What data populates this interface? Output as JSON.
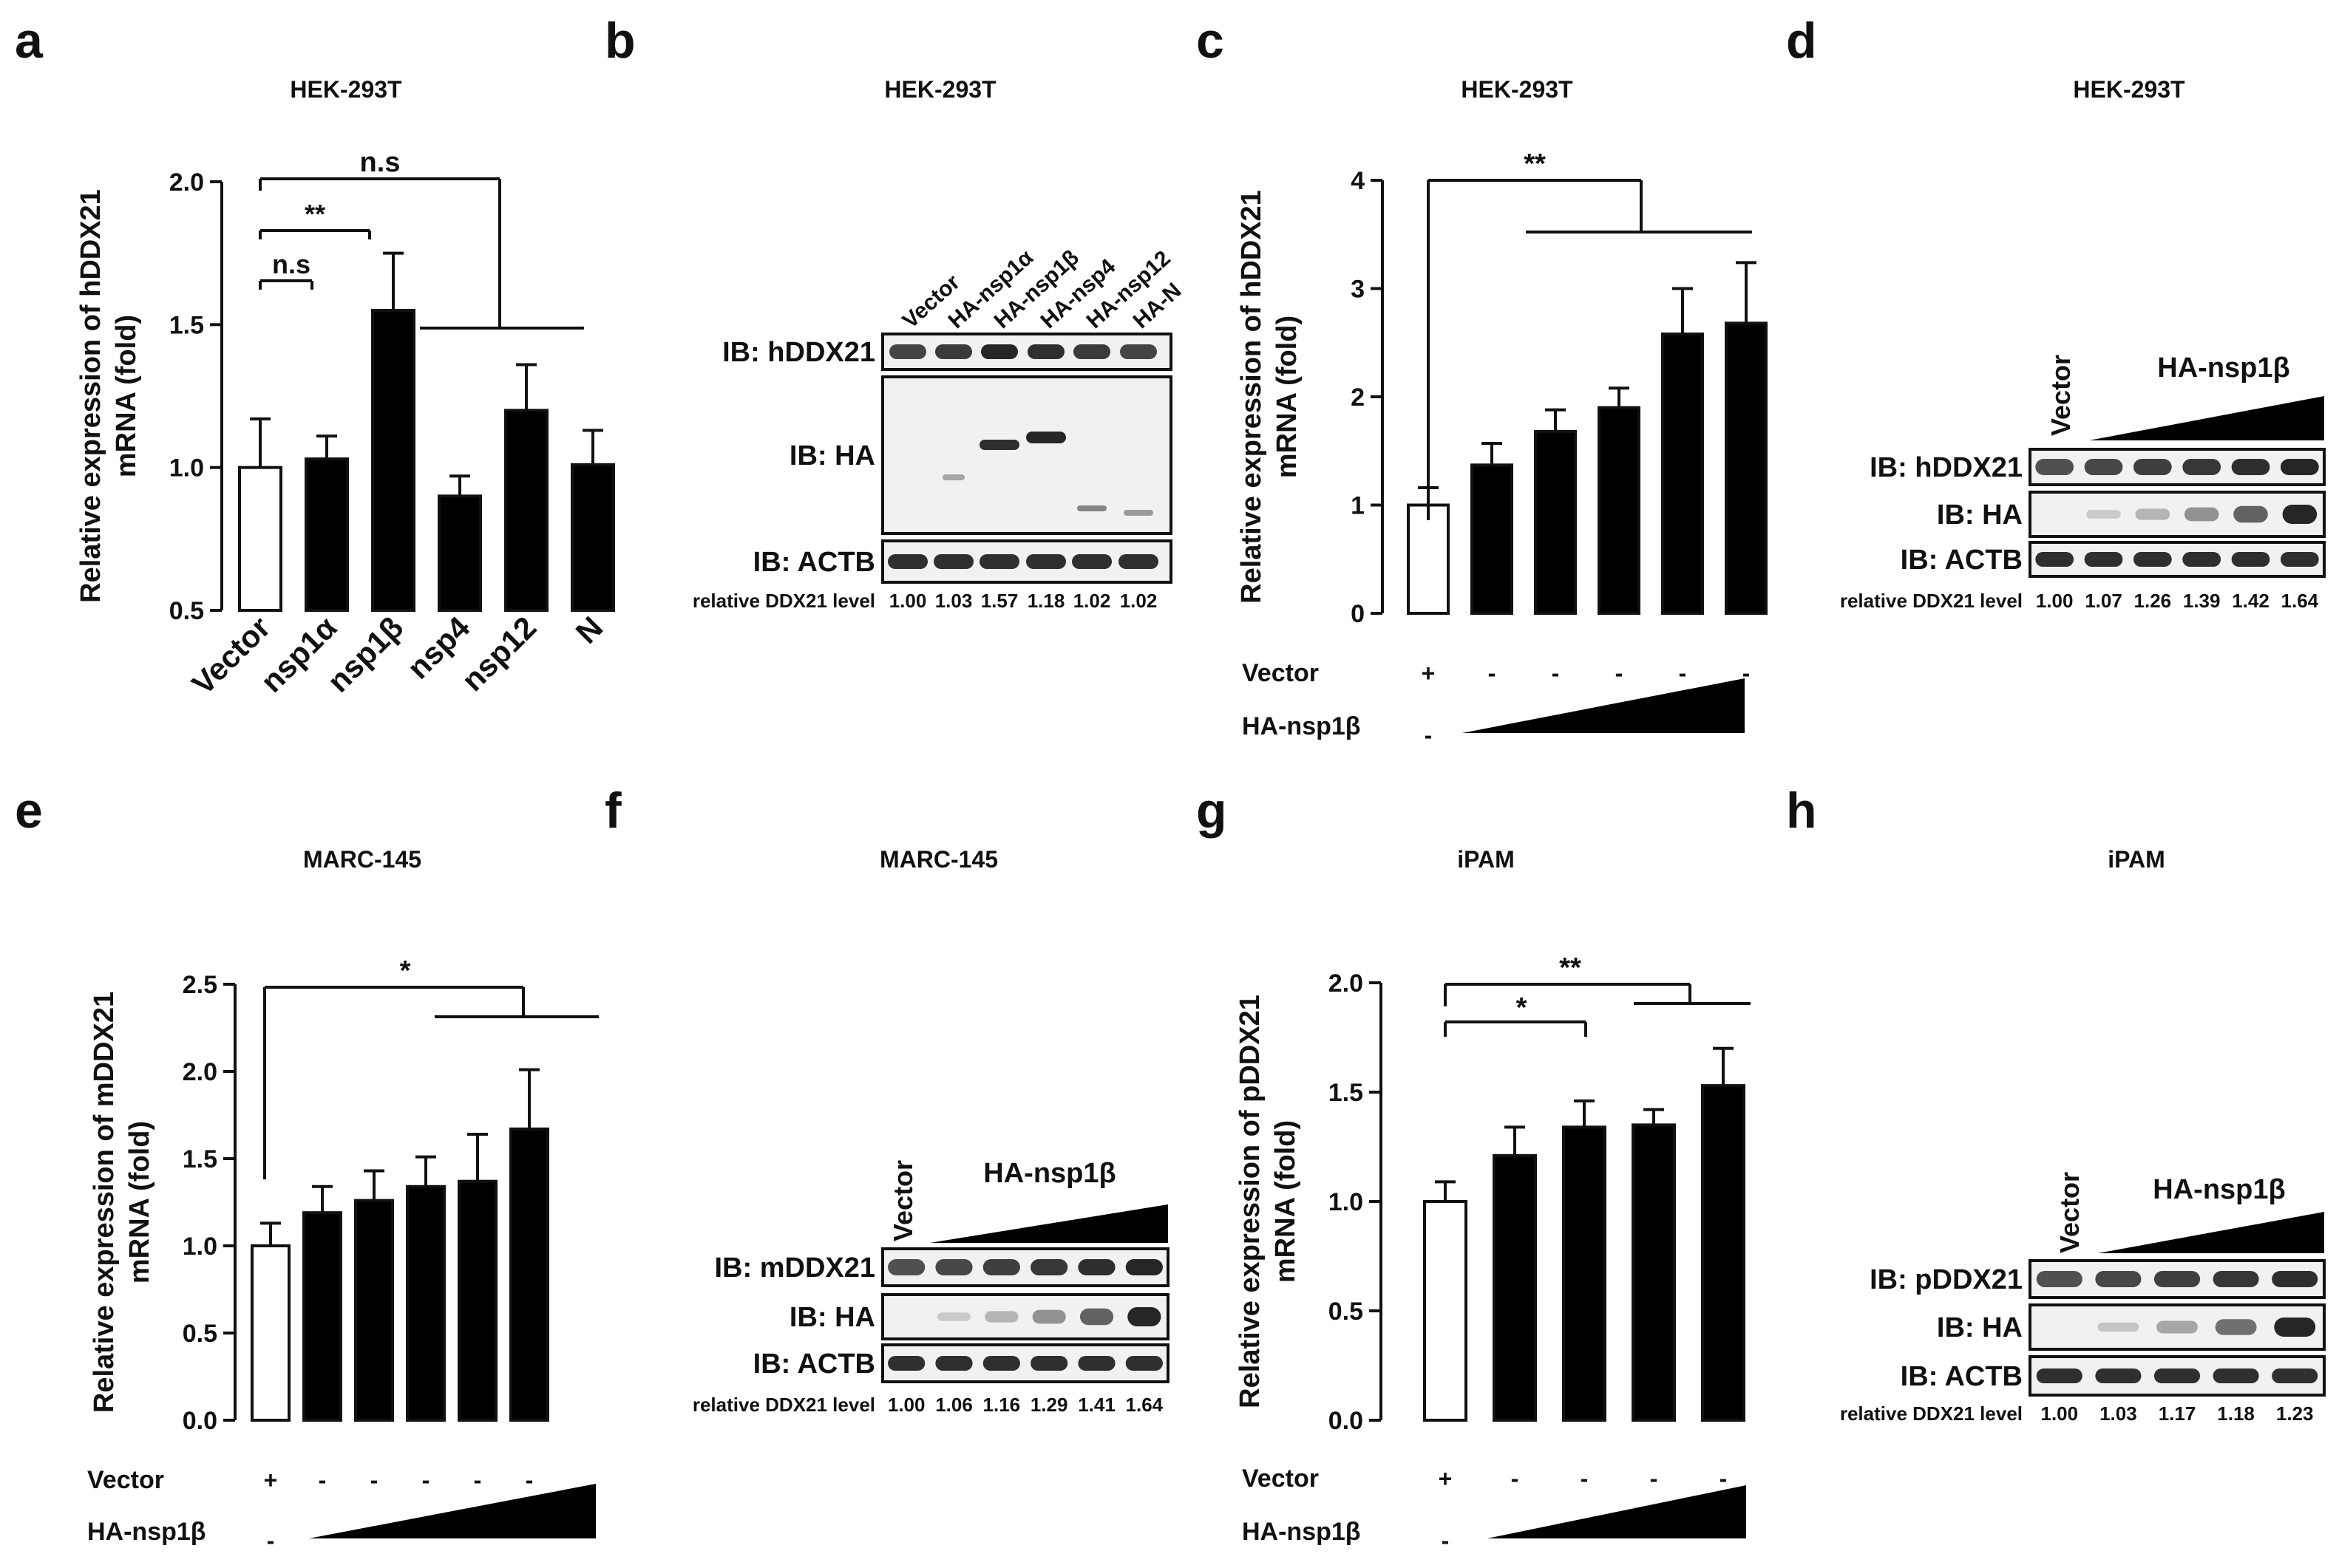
{
  "colors": {
    "ink": "#111111",
    "bar": "#000000",
    "blot_bg": "#f1f1f1",
    "band": "#1a1a1a"
  },
  "panels": {
    "a": {
      "letter": "a",
      "title": "HEK-293T"
    },
    "b": {
      "letter": "b",
      "title": "HEK-293T"
    },
    "c": {
      "letter": "c",
      "title": "HEK-293T"
    },
    "d": {
      "letter": "d",
      "title": "HEK-293T"
    },
    "e": {
      "letter": "e",
      "title": "MARC-145"
    },
    "f": {
      "letter": "f",
      "title": "MARC-145"
    },
    "g": {
      "letter": "g",
      "title": "iPAM"
    },
    "h": {
      "letter": "h",
      "title": "iPAM"
    }
  },
  "chart_data": [
    {
      "id": "a",
      "type": "bar",
      "title": "HEK-293T",
      "ylabel": [
        "Relative expression of hDDX21",
        "mRNA (fold)"
      ],
      "ylim": [
        0.5,
        2.0
      ],
      "yticks": [
        "0.5",
        "1.0",
        "1.5",
        "2.0"
      ],
      "yticks_values": [
        0.5,
        1.0,
        1.5,
        2.0
      ],
      "categories": [
        "Vector",
        "nsp1α",
        "nsp1β",
        "nsp4",
        "nsp12",
        "N"
      ],
      "values": [
        1.0,
        1.03,
        1.55,
        0.9,
        1.2,
        1.01
      ],
      "errors": [
        0.17,
        0.08,
        0.2,
        0.07,
        0.16,
        0.12
      ],
      "fills": [
        "white",
        "black",
        "black",
        "black",
        "black",
        "black"
      ],
      "annotations": [
        "n.s",
        "**",
        "n.s"
      ]
    },
    {
      "id": "c",
      "type": "bar",
      "title": "HEK-293T",
      "ylabel": [
        "Relative expression of hDDX21",
        "mRNA (fold)"
      ],
      "ylim": [
        0,
        4
      ],
      "yticks": [
        "0",
        "1",
        "2",
        "3",
        "4"
      ],
      "yticks_values": [
        0,
        1,
        2,
        3,
        4
      ],
      "values": [
        1.0,
        1.37,
        1.68,
        1.9,
        2.58,
        2.68
      ],
      "errors": [
        0.16,
        0.2,
        0.2,
        0.18,
        0.42,
        0.56
      ],
      "fills": [
        "white",
        "black",
        "black",
        "black",
        "black",
        "black"
      ],
      "row_labels": [
        "Vector",
        "HA-nsp1β"
      ],
      "vector_signs": [
        "+",
        "-",
        "-",
        "-",
        "-",
        "-"
      ],
      "nsp_start_sign": "-",
      "annotations": [
        "**"
      ]
    },
    {
      "id": "e",
      "type": "bar",
      "title": "MARC-145",
      "ylabel": [
        "Relative expression of mDDX21",
        "mRNA (fold)"
      ],
      "ylim": [
        0,
        2.5
      ],
      "yticks": [
        "0.0",
        "0.5",
        "1.0",
        "1.5",
        "2.0",
        "2.5"
      ],
      "yticks_values": [
        0,
        0.5,
        1.0,
        1.5,
        2.0,
        2.5
      ],
      "values": [
        1.0,
        1.19,
        1.26,
        1.34,
        1.37,
        1.67
      ],
      "errors": [
        0.13,
        0.15,
        0.17,
        0.17,
        0.27,
        0.34
      ],
      "fills": [
        "white",
        "black",
        "black",
        "black",
        "black",
        "black"
      ],
      "row_labels": [
        "Vector",
        "HA-nsp1β"
      ],
      "vector_signs": [
        "+",
        "-",
        "-",
        "-",
        "-",
        "-"
      ],
      "nsp_start_sign": "-",
      "annotations": [
        "*"
      ]
    },
    {
      "id": "g",
      "type": "bar",
      "title": "iPAM",
      "ylabel": [
        "Relative expression of pDDX21",
        "mRNA (fold)"
      ],
      "ylim": [
        0,
        2.0
      ],
      "yticks": [
        "0.0",
        "0.5",
        "1.0",
        "1.5",
        "2.0"
      ],
      "yticks_values": [
        0,
        0.5,
        1.0,
        1.5,
        2.0
      ],
      "values": [
        1.0,
        1.21,
        1.34,
        1.35,
        1.53
      ],
      "errors": [
        0.09,
        0.13,
        0.12,
        0.07,
        0.17
      ],
      "fills": [
        "white",
        "black",
        "black",
        "black",
        "black"
      ],
      "row_labels": [
        "Vector",
        "HA-nsp1β"
      ],
      "vector_signs": [
        "+",
        "-",
        "-",
        "-",
        "-"
      ],
      "nsp_start_sign": "-",
      "annotations": [
        "**",
        "*"
      ]
    }
  ],
  "blots": {
    "b": {
      "lanes": [
        "Vector",
        "HA-nsp1α",
        "HA-nsp1β",
        "HA-nsp4",
        "HA-nsp12",
        "HA-N"
      ],
      "rows": [
        "IB: hDDX21",
        "IB: HA",
        "IB: ACTB"
      ],
      "footer_label": "relative DDX21 level",
      "levels": [
        "1.00",
        "1.03",
        "1.57",
        "1.18",
        "1.02",
        "1.02"
      ]
    },
    "d": {
      "vector_label": "Vector",
      "gradient_label": "HA-nsp1β",
      "rows": [
        "IB: hDDX21",
        "IB: HA",
        "IB: ACTB"
      ],
      "footer_label": "relative DDX21 level",
      "levels": [
        "1.00",
        "1.07",
        "1.26",
        "1.39",
        "1.42",
        "1.64"
      ]
    },
    "f": {
      "vector_label": "Vector",
      "gradient_label": "HA-nsp1β",
      "rows": [
        "IB: mDDX21",
        "IB: HA",
        "IB: ACTB"
      ],
      "footer_label": "relative DDX21 level",
      "levels": [
        "1.00",
        "1.06",
        "1.16",
        "1.29",
        "1.41",
        "1.64"
      ]
    },
    "h": {
      "vector_label": "Vector",
      "gradient_label": "HA-nsp1β",
      "rows": [
        "IB: pDDX21",
        "IB: HA",
        "IB: ACTB"
      ],
      "footer_label": "relative DDX21 level",
      "levels": [
        "1.00",
        "1.03",
        "1.17",
        "1.18",
        "1.23"
      ]
    }
  }
}
